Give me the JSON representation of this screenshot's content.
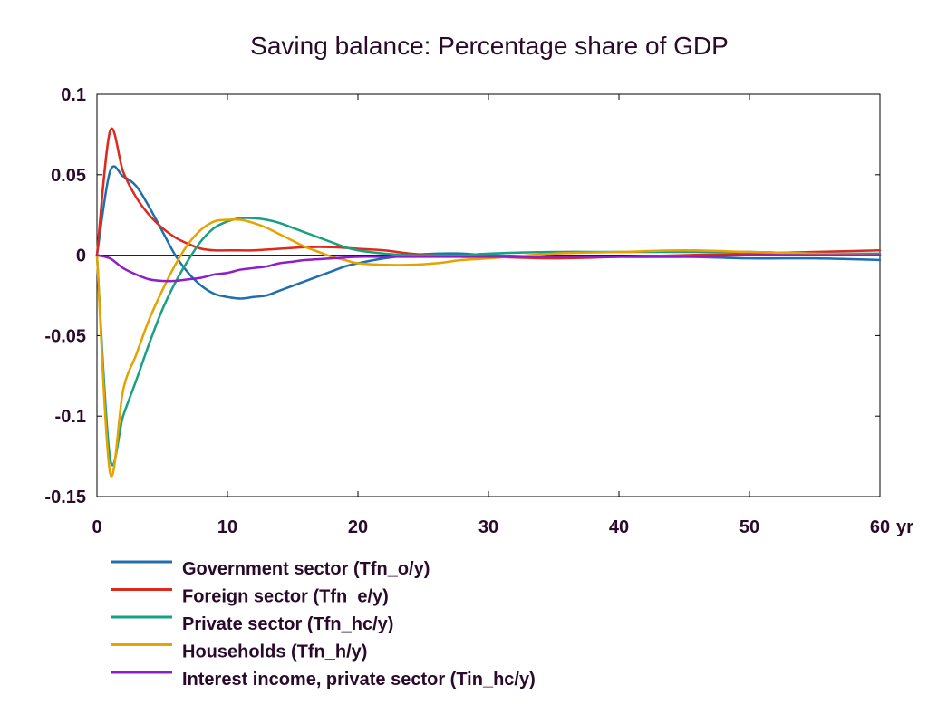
{
  "chart_data": {
    "type": "line",
    "title": "Saving balance: Percentage share of GDP",
    "xlabel": "",
    "ylabel": "",
    "x_unit_label": "yr",
    "xlim": [
      0,
      60
    ],
    "ylim": [
      -0.15,
      0.1
    ],
    "x_ticks": [
      0,
      10,
      20,
      30,
      40,
      50,
      60
    ],
    "x_tick_labels": [
      "0",
      "10",
      "20",
      "30",
      "40",
      "50",
      "60"
    ],
    "y_ticks": [
      0.1,
      0.05,
      0,
      -0.05,
      -0.1,
      -0.15
    ],
    "y_tick_labels": [
      "0.1",
      "0.05",
      "0",
      "-0.05",
      "-0.1",
      "-0.15"
    ],
    "zero_line": true,
    "grid": false,
    "legend_position": "bottom-left",
    "series": [
      {
        "name": "Government sector (Tfn_o/y)",
        "color": "#1f6fae",
        "x": [
          0,
          1,
          2,
          3,
          4,
          5,
          6,
          7,
          8,
          9,
          10,
          11,
          12,
          13,
          14,
          15,
          16,
          17,
          18,
          19,
          20,
          22,
          24,
          26,
          28,
          30,
          35,
          40,
          45,
          50,
          55,
          60
        ],
        "y": [
          0,
          0.052,
          0.049,
          0.043,
          0.03,
          0.015,
          0.0,
          -0.011,
          -0.019,
          -0.024,
          -0.026,
          -0.027,
          -0.026,
          -0.025,
          -0.022,
          -0.019,
          -0.016,
          -0.013,
          -0.01,
          -0.007,
          -0.005,
          -0.002,
          0.0,
          0.001,
          0.001,
          0.0,
          -0.001,
          -0.001,
          -0.001,
          -0.002,
          -0.002,
          -0.003
        ]
      },
      {
        "name": "Foreign sector (Tfn_e/y)",
        "color": "#dc2a1c",
        "x": [
          0,
          1,
          2,
          3,
          4,
          5,
          6,
          7,
          8,
          9,
          10,
          11,
          12,
          14,
          16,
          18,
          20,
          22,
          24,
          26,
          28,
          30,
          35,
          40,
          45,
          50,
          55,
          60
        ],
        "y": [
          0,
          0.077,
          0.052,
          0.036,
          0.025,
          0.017,
          0.011,
          0.007,
          0.004,
          0.003,
          0.003,
          0.003,
          0.003,
          0.004,
          0.005,
          0.005,
          0.004,
          0.003,
          0.001,
          0.0,
          -0.001,
          -0.001,
          -0.002,
          -0.001,
          0.0,
          0.001,
          0.002,
          0.003
        ]
      },
      {
        "name": "Private sector (Tfn_hc/y)",
        "color": "#17a082",
        "x": [
          0,
          1,
          2,
          3,
          4,
          5,
          6,
          7,
          8,
          9,
          10,
          11,
          12,
          13,
          14,
          15,
          16,
          17,
          18,
          19,
          20,
          22,
          24,
          26,
          28,
          30,
          35,
          40,
          45,
          50,
          55,
          60
        ],
        "y": [
          0,
          -0.126,
          -0.1,
          -0.078,
          -0.055,
          -0.034,
          -0.017,
          -0.003,
          0.009,
          0.017,
          0.021,
          0.023,
          0.023,
          0.022,
          0.02,
          0.017,
          0.014,
          0.011,
          0.008,
          0.005,
          0.003,
          0.001,
          0.0,
          0.0,
          0.0,
          0.001,
          0.002,
          0.002,
          0.002,
          0.002,
          0.001,
          0.001
        ]
      },
      {
        "name": "Households (Tfn_h/y)",
        "color": "#e8a200",
        "x": [
          0,
          1,
          2,
          3,
          4,
          5,
          6,
          7,
          8,
          9,
          10,
          11,
          12,
          13,
          14,
          15,
          16,
          17,
          18,
          19,
          20,
          22,
          24,
          26,
          28,
          30,
          35,
          40,
          45,
          50,
          55,
          60
        ],
        "y": [
          0,
          -0.135,
          -0.084,
          -0.062,
          -0.04,
          -0.022,
          -0.006,
          0.007,
          0.016,
          0.021,
          0.022,
          0.022,
          0.02,
          0.017,
          0.013,
          0.009,
          0.005,
          0.002,
          -0.001,
          -0.003,
          -0.005,
          -0.006,
          -0.006,
          -0.005,
          -0.003,
          -0.002,
          0.001,
          0.002,
          0.003,
          0.002,
          0.001,
          0.0
        ]
      },
      {
        "name": "Interest income, private sector (Tin_hc/y)",
        "color": "#8e1ec8",
        "x": [
          0,
          1,
          2,
          3,
          4,
          5,
          6,
          7,
          8,
          9,
          10,
          11,
          12,
          13,
          14,
          15,
          16,
          18,
          20,
          22,
          24,
          26,
          28,
          30,
          35,
          40,
          45,
          50,
          55,
          60
        ],
        "y": [
          0,
          -0.002,
          -0.008,
          -0.012,
          -0.015,
          -0.016,
          -0.016,
          -0.015,
          -0.014,
          -0.012,
          -0.011,
          -0.009,
          -0.008,
          -0.007,
          -0.005,
          -0.004,
          -0.003,
          -0.002,
          -0.001,
          -0.001,
          -0.001,
          -0.001,
          -0.001,
          -0.001,
          -0.001,
          -0.001,
          -0.001,
          0.0,
          0.0,
          0.0
        ]
      }
    ]
  }
}
